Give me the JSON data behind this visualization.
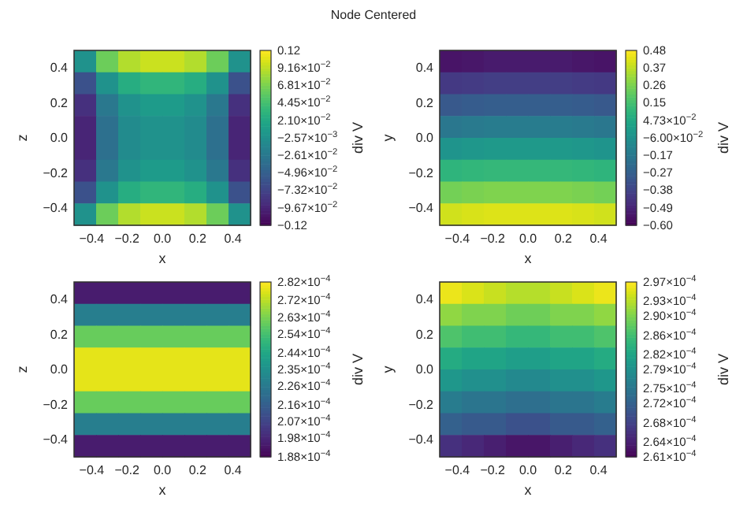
{
  "chart_data": [
    {
      "type": "heatmap",
      "annotations": [
        "Node Centered"
      ],
      "xlabel": "x",
      "ylabel": "z",
      "clabel": "div V",
      "xlim": [
        -0.5,
        0.5
      ],
      "ylim": [
        -0.5,
        0.5
      ],
      "xticks": [
        {
          "value": -0.4,
          "label": "−0.4"
        },
        {
          "value": -0.2,
          "label": "−0.2"
        },
        {
          "value": 0,
          "label": "0.0"
        },
        {
          "value": 0.2,
          "label": "0.2"
        },
        {
          "value": 0.4,
          "label": "0.4"
        }
      ],
      "yticks": [
        {
          "value": -0.4,
          "label": "−0.4"
        },
        {
          "value": -0.2,
          "label": "−0.2"
        },
        {
          "value": 0,
          "label": "0.0"
        },
        {
          "value": 0.2,
          "label": "0.2"
        },
        {
          "value": 0.4,
          "label": "0.4"
        }
      ],
      "x": [
        -0.4375,
        -0.3125,
        -0.1875,
        -0.0625,
        0.0625,
        0.1875,
        0.3125,
        0.4375
      ],
      "y": [
        0.4375,
        0.3125,
        0.1875,
        0.0625,
        -0.0625,
        -0.1875,
        -0.3125,
        -0.4375
      ],
      "clim": [
        -0.1202,
        0.1151
      ],
      "cticks": [
        {
          "value": 0.1151,
          "label": "0.12"
        },
        {
          "value": 0.0916,
          "label": "9.16×10$^{−2}$"
        },
        {
          "value": 0.0681,
          "label": "6.81×10$^{−2}$"
        },
        {
          "value": 0.0445,
          "label": "4.45×10$^{−2}$"
        },
        {
          "value": 0.021,
          "label": "2.10×10$^{−2}$"
        },
        {
          "value": -0.00257,
          "label": "−2.57×10$^{−3}$"
        },
        {
          "value": -0.0261,
          "label": "−2.61×10$^{−2}$"
        },
        {
          "value": -0.0496,
          "label": "−4.96×10$^{−2}$"
        },
        {
          "value": -0.0732,
          "label": "−7.32×10$^{−2}$"
        },
        {
          "value": -0.0967,
          "label": "−9.67×10$^{−2}$"
        },
        {
          "value": -0.1202,
          "label": "−0.12"
        }
      ],
      "cells": [
        [
          0,
          0.062,
          0.088,
          0.096,
          0.096,
          0.088,
          0.062,
          0
        ],
        [
          -0.062,
          0,
          0.026,
          0.034,
          0.034,
          0.026,
          0,
          -0.062
        ],
        [
          -0.088,
          -0.026,
          0,
          0.008,
          0.008,
          0,
          -0.026,
          -0.088
        ],
        [
          -0.096,
          -0.034,
          -0.008,
          0,
          0,
          -0.008,
          -0.034,
          -0.096
        ],
        [
          -0.096,
          -0.034,
          -0.008,
          0,
          0,
          -0.008,
          -0.034,
          -0.096
        ],
        [
          -0.088,
          -0.026,
          0,
          0.008,
          0.008,
          0,
          -0.026,
          -0.088
        ],
        [
          -0.062,
          0,
          0.026,
          0.034,
          0.034,
          0.026,
          0,
          -0.062
        ],
        [
          0,
          0.062,
          0.088,
          0.096,
          0.096,
          0.088,
          0.062,
          0
        ]
      ]
    },
    {
      "type": "heatmap",
      "xlabel": "x",
      "ylabel": "y",
      "clabel": "div V",
      "xlim": [
        -0.5,
        0.5
      ],
      "ylim": [
        -0.5,
        0.5
      ],
      "xticks": [
        {
          "value": -0.4,
          "label": "−0.4"
        },
        {
          "value": -0.2,
          "label": "−0.2"
        },
        {
          "value": 0,
          "label": "0.0"
        },
        {
          "value": 0.2,
          "label": "0.2"
        },
        {
          "value": 0.4,
          "label": "0.4"
        }
      ],
      "yticks": [
        {
          "value": -0.4,
          "label": "−0.4"
        },
        {
          "value": -0.2,
          "label": "−0.2"
        },
        {
          "value": 0,
          "label": "0.0"
        },
        {
          "value": 0.2,
          "label": "0.2"
        },
        {
          "value": 0.4,
          "label": "0.4"
        }
      ],
      "x": [
        -0.4375,
        -0.3125,
        -0.1875,
        -0.0625,
        0.0625,
        0.1875,
        0.3125,
        0.4375
      ],
      "y": [
        0.4375,
        0.3125,
        0.1875,
        0.0625,
        -0.0625,
        -0.1875,
        -0.3125,
        -0.4375
      ],
      "clim": [
        -0.5965,
        0.4765
      ],
      "cticks": [
        {
          "value": 0.4765,
          "label": "0.48"
        },
        {
          "value": 0.3692,
          "label": "0.37"
        },
        {
          "value": 0.2619,
          "label": "0.26"
        },
        {
          "value": 0.1546,
          "label": "0.15"
        },
        {
          "value": 0.0473,
          "label": "4.73×10$^{−2}$"
        },
        {
          "value": -0.06,
          "label": "−6.00×10$^{−2}$"
        },
        {
          "value": -0.1673,
          "label": "−0.17"
        },
        {
          "value": -0.2746,
          "label": "−0.27"
        },
        {
          "value": -0.3819,
          "label": "−0.38"
        },
        {
          "value": -0.4892,
          "label": "−0.49"
        },
        {
          "value": -0.5965,
          "label": "−0.60"
        }
      ],
      "cells": [
        [
          -0.54,
          -0.53,
          -0.52,
          -0.52,
          -0.52,
          -0.52,
          -0.53,
          -0.54
        ],
        [
          -0.42,
          -0.41,
          -0.4,
          -0.4,
          -0.4,
          -0.4,
          -0.41,
          -0.42
        ],
        [
          -0.3,
          -0.29,
          -0.28,
          -0.28,
          -0.28,
          -0.28,
          -0.29,
          -0.3
        ],
        [
          -0.17,
          -0.16,
          -0.15,
          -0.15,
          -0.15,
          -0.15,
          -0.16,
          -0.17
        ],
        [
          -0.04,
          -0.03,
          -0.02,
          -0.02,
          -0.02,
          -0.02,
          -0.03,
          -0.04
        ],
        [
          0.1,
          0.11,
          0.12,
          0.12,
          0.12,
          0.12,
          0.11,
          0.1
        ],
        [
          0.25,
          0.26,
          0.27,
          0.27,
          0.27,
          0.27,
          0.26,
          0.25
        ],
        [
          0.4,
          0.41,
          0.42,
          0.42,
          0.42,
          0.42,
          0.41,
          0.4
        ]
      ]
    },
    {
      "type": "heatmap",
      "xlabel": "x",
      "ylabel": "z",
      "clabel": "div V",
      "xlim": [
        -0.5,
        0.5
      ],
      "ylim": [
        -0.5,
        0.5
      ],
      "xticks": [
        {
          "value": -0.4,
          "label": "−0.4"
        },
        {
          "value": -0.2,
          "label": "−0.2"
        },
        {
          "value": 0,
          "label": "0.0"
        },
        {
          "value": 0.2,
          "label": "0.2"
        },
        {
          "value": 0.4,
          "label": "0.4"
        }
      ],
      "yticks": [
        {
          "value": -0.4,
          "label": "−0.4"
        },
        {
          "value": -0.2,
          "label": "−0.2"
        },
        {
          "value": 0,
          "label": "0.0"
        },
        {
          "value": 0.2,
          "label": "0.2"
        },
        {
          "value": 0.4,
          "label": "0.4"
        }
      ],
      "x": [
        -0.4375,
        -0.3125,
        -0.1875,
        -0.0625,
        0.0625,
        0.1875,
        0.3125,
        0.4375
      ],
      "y": [
        0.4375,
        0.3125,
        0.1875,
        0.0625,
        -0.0625,
        -0.1875,
        -0.3125,
        -0.4375
      ],
      "clim": [
        0.000188,
        0.000282
      ],
      "cticks": [
        {
          "value": 0.000282,
          "label": "2.82×10$^{−4}$"
        },
        {
          "value": 0.000272,
          "label": "2.72×10$^{−4}$"
        },
        {
          "value": 0.000263,
          "label": "2.63×10$^{−4}$"
        },
        {
          "value": 0.000254,
          "label": "2.54×10$^{−4}$"
        },
        {
          "value": 0.000244,
          "label": "2.44×10$^{−4}$"
        },
        {
          "value": 0.000235,
          "label": "2.35×10$^{−4}$"
        },
        {
          "value": 0.000226,
          "label": "2.26×10$^{−4}$"
        },
        {
          "value": 0.000216,
          "label": "2.16×10$^{−4}$"
        },
        {
          "value": 0.000207,
          "label": "2.07×10$^{−4}$"
        },
        {
          "value": 0.000198,
          "label": "1.98×10$^{−4}$"
        },
        {
          "value": 0.000188,
          "label": "1.88×10$^{−4}$"
        }
      ],
      "cells": [
        [
          0.000195,
          0.000195,
          0.000195,
          0.000195,
          0.000195,
          0.000195,
          0.000195,
          0.000195
        ],
        [
          0.000228,
          0.000228,
          0.000228,
          0.000228,
          0.000228,
          0.000228,
          0.000228,
          0.000228
        ],
        [
          0.00026,
          0.00026,
          0.00026,
          0.00026,
          0.00026,
          0.00026,
          0.00026,
          0.00026
        ],
        [
          0.000278,
          0.000278,
          0.000278,
          0.000278,
          0.000278,
          0.000278,
          0.000278,
          0.000278
        ],
        [
          0.000278,
          0.000278,
          0.000278,
          0.000278,
          0.000278,
          0.000278,
          0.000278,
          0.000278
        ],
        [
          0.00026,
          0.00026,
          0.00026,
          0.00026,
          0.00026,
          0.00026,
          0.00026,
          0.00026
        ],
        [
          0.000228,
          0.000228,
          0.000228,
          0.000228,
          0.000228,
          0.000228,
          0.000228,
          0.000228
        ],
        [
          0.000195,
          0.000195,
          0.000195,
          0.000195,
          0.000195,
          0.000195,
          0.000195,
          0.000195
        ]
      ]
    },
    {
      "type": "heatmap",
      "xlabel": "x",
      "ylabel": "y",
      "clabel": "div V",
      "xlim": [
        -0.5,
        0.5
      ],
      "ylim": [
        -0.5,
        0.5
      ],
      "xticks": [
        {
          "value": -0.4,
          "label": "−0.4"
        },
        {
          "value": -0.2,
          "label": "−0.2"
        },
        {
          "value": 0,
          "label": "0.0"
        },
        {
          "value": 0.2,
          "label": "0.2"
        },
        {
          "value": 0.4,
          "label": "0.4"
        }
      ],
      "yticks": [
        {
          "value": -0.4,
          "label": "−0.4"
        },
        {
          "value": -0.2,
          "label": "−0.2"
        },
        {
          "value": 0,
          "label": "0.0"
        },
        {
          "value": 0.2,
          "label": "0.2"
        },
        {
          "value": 0.4,
          "label": "0.4"
        }
      ],
      "x": [
        -0.4375,
        -0.3125,
        -0.1875,
        -0.0625,
        0.0625,
        0.1875,
        0.3125,
        0.4375
      ],
      "y": [
        0.4375,
        0.3125,
        0.1875,
        0.0625,
        -0.0625,
        -0.1875,
        -0.3125,
        -0.4375
      ],
      "clim": [
        0.000261,
        0.000297
      ],
      "cticks": [
        {
          "value": 0.000297,
          "label": "2.97×10$^{−4}$"
        },
        {
          "value": 0.000293,
          "label": "2.93×10$^{−4}$"
        },
        {
          "value": 0.00029,
          "label": "2.90×10$^{−4}$"
        },
        {
          "value": 0.000286,
          "label": "2.86×10$^{−4}$"
        },
        {
          "value": 0.000282,
          "label": "2.82×10$^{−4}$"
        },
        {
          "value": 0.000279,
          "label": "2.79×10$^{−4}$"
        },
        {
          "value": 0.000275,
          "label": "2.75×10$^{−4}$"
        },
        {
          "value": 0.000272,
          "label": "2.72×10$^{−4}$"
        },
        {
          "value": 0.000268,
          "label": "2.68×10$^{−4}$"
        },
        {
          "value": 0.000264,
          "label": "2.64×10$^{−4}$"
        },
        {
          "value": 0.000261,
          "label": "2.61×10$^{−4}$"
        }
      ],
      "cells": [
        [
          0.000296,
          0.000295,
          0.000294,
          0.000293,
          0.000293,
          0.000294,
          0.000295,
          0.000296
        ],
        [
          0.000291,
          0.00029,
          0.00029,
          0.000289,
          0.000289,
          0.00029,
          0.00029,
          0.000291
        ],
        [
          0.000287,
          0.000286,
          0.000286,
          0.000285,
          0.000285,
          0.000286,
          0.000286,
          0.000287
        ],
        [
          0.000283,
          0.000282,
          0.000282,
          0.000281,
          0.000281,
          0.000282,
          0.000282,
          0.000283
        ],
        [
          0.00028,
          0.000279,
          0.000279,
          0.000278,
          0.000278,
          0.000279,
          0.000279,
          0.00028
        ],
        [
          0.000276,
          0.000275,
          0.000275,
          0.000274,
          0.000274,
          0.000275,
          0.000275,
          0.000276
        ],
        [
          0.000272,
          0.000271,
          0.000271,
          0.00027,
          0.00027,
          0.000271,
          0.000271,
          0.000272
        ],
        [
          0.000266,
          0.000265,
          0.000264,
          0.000263,
          0.000263,
          0.000264,
          0.000265,
          0.000266
        ]
      ]
    }
  ]
}
